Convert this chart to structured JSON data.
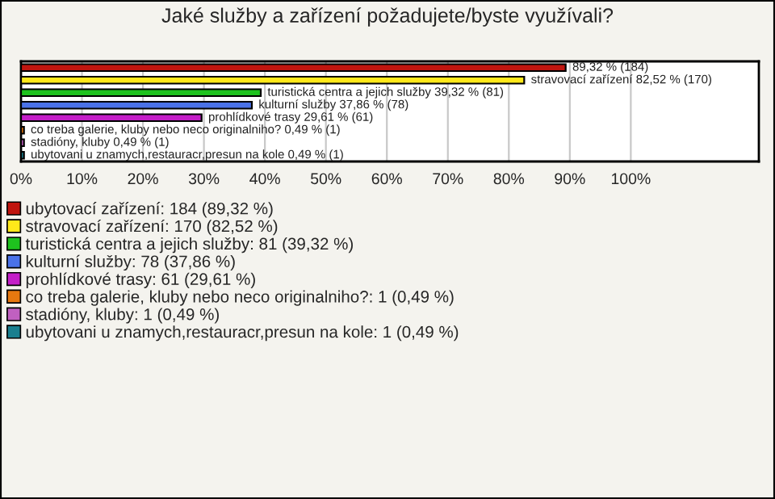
{
  "chart_data": {
    "type": "bar",
    "orientation": "horizontal",
    "title": "Jaké služby a zařízení požadujete/byste využívali?",
    "categories": [
      null,
      null,
      null,
      null,
      null,
      null,
      null,
      null
    ],
    "series": [
      {
        "name": "ubytovací zařízení: 184 (89,32 %)",
        "color": "#c0150f",
        "values": [
          89.32,
          null,
          null,
          null,
          null,
          null,
          null,
          null
        ],
        "value_labels": [
          "89,32 % (184)",
          null,
          null,
          null,
          null,
          null,
          null,
          null
        ]
      },
      {
        "name": "stravovací zařízení: 170 (82,52 %)",
        "color": "#ffe81a",
        "values": [
          null,
          82.52,
          null,
          null,
          null,
          null,
          null,
          null
        ],
        "value_labels": [
          null,
          "stravovací zařízení 82,52 % (170)",
          null,
          null,
          null,
          null,
          null,
          null
        ]
      },
      {
        "name": "turistická centra a jejich služby: 81 (39,32 %)",
        "color": "#1ec21e",
        "values": [
          null,
          null,
          39.32,
          null,
          null,
          null,
          null,
          null
        ],
        "value_labels": [
          null,
          null,
          "turistická centra a jejich služby 39,32 % (81)",
          null,
          null,
          null,
          null,
          null
        ]
      },
      {
        "name": "kulturní služby: 78 (37,86 %)",
        "color": "#4a72e8",
        "values": [
          null,
          null,
          null,
          37.86,
          null,
          null,
          null,
          null
        ],
        "value_labels": [
          null,
          null,
          null,
          "kulturní služby 37,86 % (78)",
          null,
          null,
          null,
          null
        ]
      },
      {
        "name": "prohlídkové trasy: 61 (29,61 %)",
        "color": "#c41ec8",
        "values": [
          null,
          null,
          null,
          null,
          29.61,
          null,
          null,
          null
        ],
        "value_labels": [
          null,
          null,
          null,
          null,
          "prohlídkové trasy 29,61 % (61)",
          null,
          null,
          null
        ]
      },
      {
        "name": "co treba galerie, kluby nebo neco originalniho?: 1 (0,49 %)",
        "color": "#e6780f",
        "values": [
          null,
          null,
          null,
          null,
          null,
          0.49,
          null,
          null
        ],
        "value_labels": [
          null,
          null,
          null,
          null,
          null,
          "co treba galerie, kluby nebo neco originalniho? 0,49 % (1)",
          null,
          null
        ]
      },
      {
        "name": "stadióny, kluby: 1 (0,49 %)",
        "color": "#c060c0",
        "values": [
          null,
          null,
          null,
          null,
          null,
          null,
          0.49,
          null
        ],
        "value_labels": [
          null,
          null,
          null,
          null,
          null,
          null,
          "stadióny, kluby 0,49 % (1)",
          null
        ]
      },
      {
        "name": "ubytovani u znamych,restauracr,presun na kole: 1 (0,49 %)",
        "color": "#1a7f8f",
        "values": [
          null,
          null,
          null,
          null,
          null,
          null,
          null,
          0.49
        ],
        "value_labels": [
          null,
          null,
          null,
          null,
          null,
          null,
          null,
          "ubytovani u znamych,restauracr,presun na kole 0,49 % (1)"
        ]
      }
    ],
    "xlim": [
      0,
      121
    ],
    "xticks": [
      {
        "value": 0,
        "label": "0%"
      },
      {
        "value": 10,
        "label": "10%"
      },
      {
        "value": 20,
        "label": "20%"
      },
      {
        "value": 30,
        "label": "30%"
      },
      {
        "value": 40,
        "label": "40%"
      },
      {
        "value": 50,
        "label": "50%"
      },
      {
        "value": 60,
        "label": "60%"
      },
      {
        "value": 70,
        "label": "70%"
      },
      {
        "value": 80,
        "label": "80%"
      },
      {
        "value": 90,
        "label": "90%"
      },
      {
        "value": 100,
        "label": "100%"
      }
    ],
    "grid": "x",
    "legend": "bottom"
  }
}
